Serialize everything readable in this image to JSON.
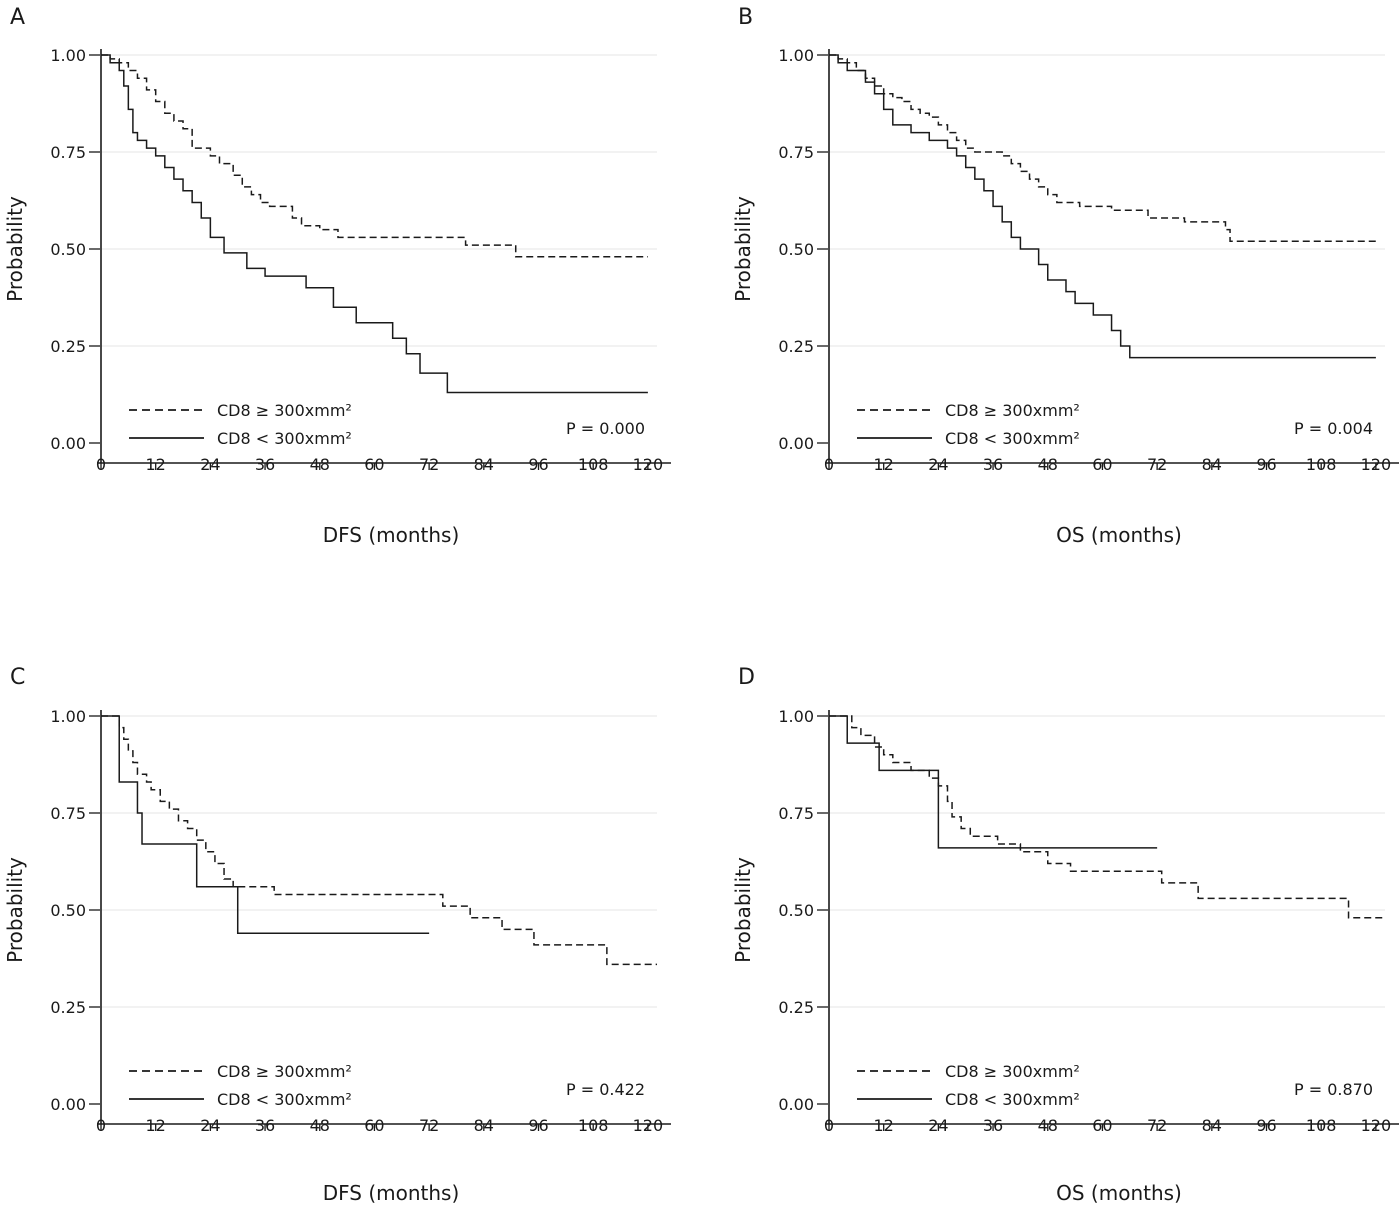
{
  "figure": {
    "background": "#ffffff",
    "ink": "#1a1a1a",
    "grid_color": "#e6e6e6"
  },
  "chart_data": [
    {
      "panel": "A",
      "type": "line",
      "subtype": "kaplan-meier",
      "xlabel": "DFS (months)",
      "ylabel": "Probability",
      "xticks": [
        0,
        12,
        24,
        36,
        48,
        60,
        72,
        84,
        96,
        108,
        120
      ],
      "yticks": [
        "0.00",
        "0.25",
        "0.50",
        "0.75",
        "1.00"
      ],
      "xlim": [
        0,
        122
      ],
      "ylim": [
        0,
        1
      ],
      "legend_position": "bottom-left",
      "p_value": "P = 0.000",
      "series": [
        {
          "name": "CD8 ≥ 300xmm²",
          "style": "dashed",
          "points": [
            [
              0,
              1.0
            ],
            [
              2,
              0.99
            ],
            [
              4,
              0.98
            ],
            [
              6,
              0.96
            ],
            [
              8,
              0.94
            ],
            [
              10,
              0.91
            ],
            [
              12,
              0.88
            ],
            [
              14,
              0.85
            ],
            [
              16,
              0.83
            ],
            [
              18,
              0.81
            ],
            [
              20,
              0.76
            ],
            [
              24,
              0.74
            ],
            [
              26,
              0.72
            ],
            [
              29,
              0.69
            ],
            [
              31,
              0.66
            ],
            [
              33,
              0.64
            ],
            [
              35,
              0.62
            ],
            [
              37,
              0.61
            ],
            [
              42,
              0.58
            ],
            [
              44,
              0.56
            ],
            [
              48,
              0.55
            ],
            [
              52,
              0.53
            ],
            [
              80,
              0.51
            ],
            [
              91,
              0.48
            ],
            [
              120,
              0.48
            ]
          ]
        },
        {
          "name": "CD8 < 300xmm²",
          "style": "solid",
          "points": [
            [
              0,
              1.0
            ],
            [
              2,
              0.98
            ],
            [
              4,
              0.96
            ],
            [
              5,
              0.92
            ],
            [
              6,
              0.86
            ],
            [
              7,
              0.8
            ],
            [
              8,
              0.78
            ],
            [
              10,
              0.76
            ],
            [
              12,
              0.74
            ],
            [
              14,
              0.71
            ],
            [
              16,
              0.68
            ],
            [
              18,
              0.65
            ],
            [
              20,
              0.62
            ],
            [
              22,
              0.58
            ],
            [
              24,
              0.53
            ],
            [
              27,
              0.49
            ],
            [
              32,
              0.45
            ],
            [
              36,
              0.43
            ],
            [
              45,
              0.4
            ],
            [
              51,
              0.35
            ],
            [
              56,
              0.31
            ],
            [
              64,
              0.27
            ],
            [
              67,
              0.23
            ],
            [
              70,
              0.18
            ],
            [
              76,
              0.13
            ],
            [
              120,
              0.13
            ]
          ]
        }
      ]
    },
    {
      "panel": "B",
      "type": "line",
      "subtype": "kaplan-meier",
      "xlabel": "OS (months)",
      "ylabel": "Probability",
      "xticks": [
        0,
        12,
        24,
        36,
        48,
        60,
        72,
        84,
        96,
        108,
        120
      ],
      "yticks": [
        "0.00",
        "0.25",
        "0.50",
        "0.75",
        "1.00"
      ],
      "xlim": [
        0,
        122
      ],
      "ylim": [
        0,
        1
      ],
      "legend_position": "bottom-left",
      "p_value": "P = 0.004",
      "series": [
        {
          "name": "CD8 ≥ 300xmm²",
          "style": "dashed",
          "points": [
            [
              0,
              1.0
            ],
            [
              2,
              0.99
            ],
            [
              4,
              0.98
            ],
            [
              6,
              0.96
            ],
            [
              8,
              0.94
            ],
            [
              10,
              0.92
            ],
            [
              12,
              0.9
            ],
            [
              14,
              0.89
            ],
            [
              16,
              0.88
            ],
            [
              18,
              0.86
            ],
            [
              20,
              0.85
            ],
            [
              22,
              0.84
            ],
            [
              24,
              0.82
            ],
            [
              26,
              0.8
            ],
            [
              28,
              0.78
            ],
            [
              30,
              0.76
            ],
            [
              32,
              0.75
            ],
            [
              38,
              0.74
            ],
            [
              40,
              0.72
            ],
            [
              42,
              0.7
            ],
            [
              44,
              0.68
            ],
            [
              46,
              0.66
            ],
            [
              48,
              0.64
            ],
            [
              50,
              0.62
            ],
            [
              55,
              0.61
            ],
            [
              62,
              0.6
            ],
            [
              70,
              0.58
            ],
            [
              78,
              0.57
            ],
            [
              87,
              0.55
            ],
            [
              88,
              0.52
            ],
            [
              120,
              0.52
            ]
          ]
        },
        {
          "name": "CD8 < 300xmm²",
          "style": "solid",
          "points": [
            [
              0,
              1.0
            ],
            [
              2,
              0.98
            ],
            [
              4,
              0.96
            ],
            [
              8,
              0.93
            ],
            [
              10,
              0.9
            ],
            [
              12,
              0.86
            ],
            [
              14,
              0.82
            ],
            [
              18,
              0.8
            ],
            [
              22,
              0.78
            ],
            [
              26,
              0.76
            ],
            [
              28,
              0.74
            ],
            [
              30,
              0.71
            ],
            [
              32,
              0.68
            ],
            [
              34,
              0.65
            ],
            [
              36,
              0.61
            ],
            [
              38,
              0.57
            ],
            [
              40,
              0.53
            ],
            [
              42,
              0.5
            ],
            [
              46,
              0.46
            ],
            [
              48,
              0.42
            ],
            [
              52,
              0.39
            ],
            [
              54,
              0.36
            ],
            [
              58,
              0.33
            ],
            [
              62,
              0.29
            ],
            [
              64,
              0.25
            ],
            [
              66,
              0.22
            ],
            [
              120,
              0.22
            ]
          ]
        }
      ]
    },
    {
      "panel": "C",
      "type": "line",
      "subtype": "kaplan-meier",
      "xlabel": "DFS (months)",
      "ylabel": "Probability",
      "xticks": [
        0,
        12,
        24,
        36,
        48,
        60,
        72,
        84,
        96,
        108,
        120
      ],
      "yticks": [
        "0.00",
        "0.25",
        "0.50",
        "0.75",
        "1.00"
      ],
      "xlim": [
        0,
        122
      ],
      "ylim": [
        0,
        1
      ],
      "legend_position": "bottom-left",
      "p_value": "P = 0.422",
      "series": [
        {
          "name": "CD8 ≥ 300xmm²",
          "style": "dashed",
          "points": [
            [
              0,
              1.0
            ],
            [
              3,
              1.0
            ],
            [
              4,
              0.97
            ],
            [
              5,
              0.94
            ],
            [
              6,
              0.91
            ],
            [
              7,
              0.88
            ],
            [
              8,
              0.85
            ],
            [
              10,
              0.83
            ],
            [
              11,
              0.81
            ],
            [
              13,
              0.78
            ],
            [
              15,
              0.76
            ],
            [
              17,
              0.73
            ],
            [
              19,
              0.71
            ],
            [
              21,
              0.68
            ],
            [
              23,
              0.65
            ],
            [
              25,
              0.62
            ],
            [
              27,
              0.58
            ],
            [
              29,
              0.56
            ],
            [
              38,
              0.54
            ],
            [
              75,
              0.51
            ],
            [
              81,
              0.48
            ],
            [
              88,
              0.45
            ],
            [
              95,
              0.41
            ],
            [
              111,
              0.36
            ],
            [
              122,
              0.36
            ]
          ]
        },
        {
          "name": "CD8 < 300xmm²",
          "style": "solid",
          "points": [
            [
              0,
              1.0
            ],
            [
              3,
              1.0
            ],
            [
              4,
              0.83
            ],
            [
              8,
              0.75
            ],
            [
              9,
              0.67
            ],
            [
              21,
              0.56
            ],
            [
              30,
              0.44
            ],
            [
              72,
              0.44
            ]
          ]
        }
      ]
    },
    {
      "panel": "D",
      "type": "line",
      "subtype": "kaplan-meier",
      "xlabel": "OS (months)",
      "ylabel": "Probability",
      "xticks": [
        0,
        12,
        24,
        36,
        48,
        60,
        72,
        84,
        96,
        108,
        120
      ],
      "yticks": [
        "0.00",
        "0.25",
        "0.50",
        "0.75",
        "1.00"
      ],
      "xlim": [
        0,
        122
      ],
      "ylim": [
        0,
        1
      ],
      "legend_position": "bottom-left",
      "p_value": "P = 0.870",
      "series": [
        {
          "name": "CD8 ≥ 300xmm²",
          "style": "dashed",
          "points": [
            [
              0,
              1.0
            ],
            [
              4,
              1.0
            ],
            [
              5,
              0.97
            ],
            [
              7,
              0.95
            ],
            [
              10,
              0.92
            ],
            [
              12,
              0.9
            ],
            [
              14,
              0.88
            ],
            [
              18,
              0.86
            ],
            [
              22,
              0.84
            ],
            [
              24,
              0.82
            ],
            [
              26,
              0.78
            ],
            [
              27,
              0.74
            ],
            [
              29,
              0.71
            ],
            [
              31,
              0.69
            ],
            [
              37,
              0.67
            ],
            [
              42,
              0.65
            ],
            [
              48,
              0.62
            ],
            [
              53,
              0.6
            ],
            [
              73,
              0.57
            ],
            [
              81,
              0.53
            ],
            [
              114,
              0.48
            ],
            [
              122,
              0.48
            ]
          ]
        },
        {
          "name": "CD8 < 300xmm²",
          "style": "solid",
          "points": [
            [
              0,
              1.0
            ],
            [
              3,
              1.0
            ],
            [
              4,
              0.93
            ],
            [
              11,
              0.86
            ],
            [
              24,
              0.86
            ],
            [
              24,
              0.66
            ],
            [
              72,
              0.66
            ]
          ]
        }
      ]
    }
  ]
}
